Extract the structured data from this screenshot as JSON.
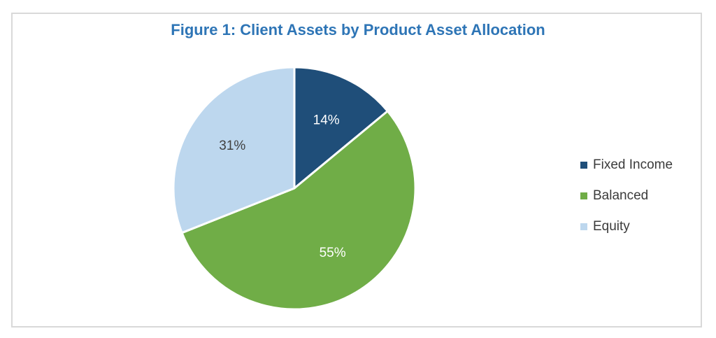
{
  "chart_data": {
    "type": "pie",
    "title": "Figure 1: Client Assets by Product Asset Allocation",
    "categories": [
      "Fixed Income",
      "Balanced",
      "Equity"
    ],
    "values": [
      14,
      55,
      31
    ],
    "labels": [
      "14%",
      "55%",
      "31%"
    ],
    "colors": [
      "#1f4e79",
      "#70ad47",
      "#bdd7ee"
    ],
    "label_colors": [
      "#ffffff",
      "#ffffff",
      "#404040"
    ],
    "start_angle_deg": 0,
    "direction": "clockwise",
    "legend_position": "right"
  }
}
